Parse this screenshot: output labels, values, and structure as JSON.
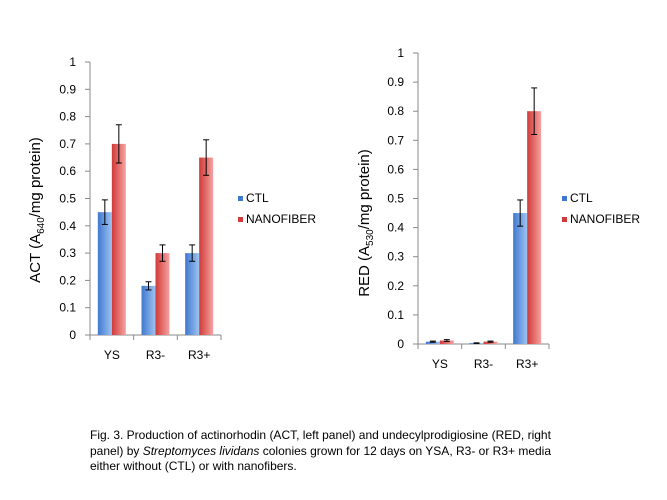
{
  "colors": {
    "ctl_dark": "#3f78cf",
    "ctl_light": "#9fc3f2",
    "nano_dark": "#d03a38",
    "nano_light": "#f5a3a1",
    "axis": "#8a8a8a",
    "error_bar": "#000000"
  },
  "chart_data": [
    {
      "type": "bar",
      "panel": "left",
      "ylabel_main": "ACT (A",
      "ylabel_sub": "640",
      "ylabel_tail": "/mg protein)",
      "categories": [
        "YS",
        "R3-",
        "R3+"
      ],
      "series": [
        {
          "name": "CTL",
          "values": [
            0.45,
            0.18,
            0.3
          ],
          "errors": [
            0.045,
            0.015,
            0.03
          ]
        },
        {
          "name": "NANOFIBER",
          "values": [
            0.7,
            0.3,
            0.65
          ],
          "errors": [
            0.07,
            0.03,
            0.065
          ]
        }
      ],
      "ylim": [
        0,
        1
      ],
      "yticks": [
        "0",
        "0.1",
        "0.2",
        "0.3",
        "0.4",
        "0.5",
        "0.6",
        "0.7",
        "0.8",
        "0.9",
        "1"
      ],
      "grid": false,
      "legend_position": "right"
    },
    {
      "type": "bar",
      "panel": "right",
      "ylabel_main": "RED (A",
      "ylabel_sub": "530",
      "ylabel_tail": "/mg protein)",
      "categories": [
        "YS",
        "R3-",
        "R3+"
      ],
      "series": [
        {
          "name": "CTL",
          "values": [
            0.008,
            0.003,
            0.45
          ],
          "errors": [
            0.002,
            0.001,
            0.045
          ]
        },
        {
          "name": "NANOFIBER",
          "values": [
            0.012,
            0.008,
            0.8
          ],
          "errors": [
            0.003,
            0.002,
            0.08
          ]
        }
      ],
      "ylim": [
        0,
        1
      ],
      "yticks": [
        "0",
        "0.1",
        "0.2",
        "0.3",
        "0.4",
        "0.5",
        "0.6",
        "0.7",
        "0.8",
        "0.9",
        "1"
      ],
      "grid": false,
      "legend_position": "right"
    }
  ],
  "caption": {
    "part1": "Fig. 3. Production of actinorhodin (ACT, left panel) and undecylprodigiosine (RED, right panel) by ",
    "italic": "Streptomyces lividans",
    "part2": " colonies grown for 12 days on YSA, R3- or R3+ media either without (CTL) or with nanofibers."
  }
}
